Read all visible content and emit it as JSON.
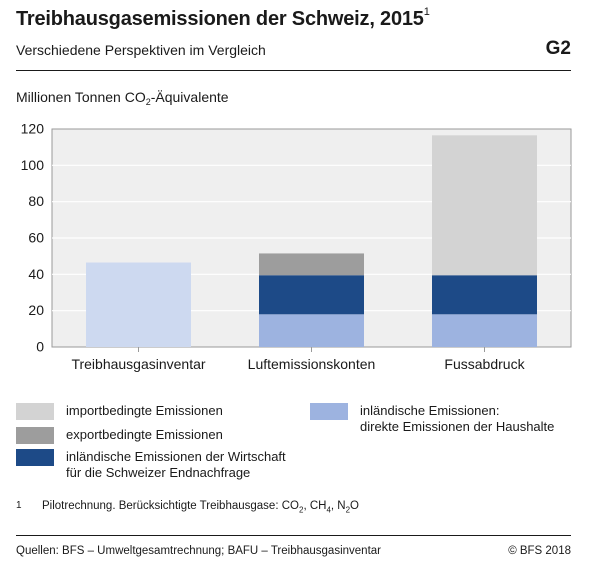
{
  "header": {
    "title": "Treibhausgasemissionen der Schweiz, 2015",
    "title_footnote_mark": "1",
    "subtitle": "Verschiedene Perspektiven im Vergleich",
    "badge": "G2"
  },
  "chart_data": {
    "type": "bar",
    "stacked": true,
    "ylabel_prefix": "Millionen Tonnen CO",
    "ylabel_sub": "2",
    "ylabel_suffix": "-Äquivalente",
    "ylim": [
      0,
      120
    ],
    "yticks": [
      0,
      20,
      40,
      60,
      80,
      100,
      120
    ],
    "grid": true,
    "categories": [
      "Treibhausgasinventar",
      "Luftemissionskonten",
      "Fussabdruck"
    ],
    "series": [
      {
        "key": "inventar",
        "color": "#cdd9f0",
        "values": [
          46.5,
          0,
          0
        ]
      },
      {
        "key": "haushalte",
        "name": "inländische Emissionen: direkte Emissionen der Haushalte",
        "color": "#9db3e0",
        "values": [
          0,
          18,
          18
        ]
      },
      {
        "key": "wirtschaft",
        "name": "inländische Emissionen der Wirtschaft für die Schweizer Endnachfrage",
        "color": "#1d4a87",
        "values": [
          0,
          21.5,
          21.5
        ]
      },
      {
        "key": "export",
        "name": "exportbedingte Emissionen",
        "color": "#9d9d9d",
        "values": [
          0,
          12,
          0
        ]
      },
      {
        "key": "import",
        "name": "importbedingte Emissionen",
        "color": "#d3d3d3",
        "values": [
          0,
          0,
          77
        ]
      }
    ]
  },
  "legend": {
    "import": "importbedingte Emissionen",
    "export": "exportbedingte Emissionen",
    "wirtschaft_line1": "inländische Emissionen der Wirtschaft",
    "wirtschaft_line2": "für die Schweizer Endnachfrage",
    "haushalte_line1": "inländische Emissionen:",
    "haushalte_line2": "direkte Emissionen der Haushalte"
  },
  "colors": {
    "import": "#d3d3d3",
    "export": "#9d9d9d",
    "wirtschaft": "#1d4a87",
    "haushalte": "#9db3e0",
    "inventar": "#cdd9f0"
  },
  "footnote": {
    "mark": "1",
    "text_1": "Pilotrechnung. Berücksichtigte Treibhausgase: CO",
    "sub_1": "2",
    "text_2": ", CH",
    "sub_2": "4",
    "text_3": ", N",
    "sub_3": "2",
    "text_4": "O"
  },
  "source": "Quellen: BFS – Umweltgesamtrechnung; BAFU – Treibhausgasinventar",
  "copyright": "© BFS 2018"
}
